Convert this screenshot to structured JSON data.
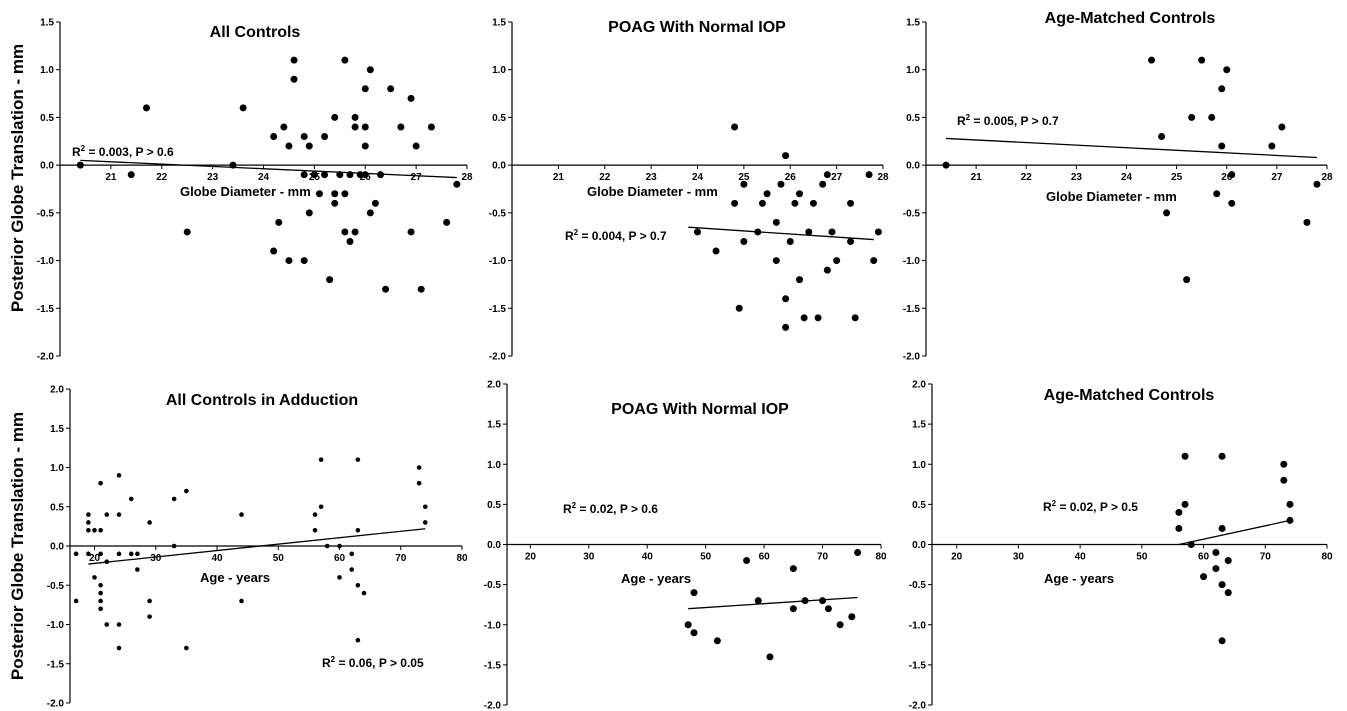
{
  "figure": {
    "ylabel_top": "Posterior Globe Translation - mm",
    "ylabel_bottom": "Posterior Globe Translation - mm"
  },
  "chart_data": [
    {
      "type": "scatter",
      "title": "All Controls",
      "xlabel": "Globe Diameter - mm",
      "ylabel": "Posterior Globe Translation - mm",
      "xlim": [
        20,
        28
      ],
      "ylim": [
        -2.0,
        1.5
      ],
      "x_ticks": [
        "21",
        "22",
        "23",
        "24",
        "25",
        "26",
        "27",
        "28"
      ],
      "y_ticks": [
        "1.5",
        "1.0",
        "0.5",
        "0.0",
        "-0.5",
        "-1.0",
        "-1.5",
        "-2.0"
      ],
      "annotation": {
        "prefix": "R",
        "sup": "2",
        "text": " = 0.003, P > 0.6"
      },
      "regression": {
        "x1": 20.4,
        "y1": 0.05,
        "x2": 27.8,
        "y2": -0.13
      },
      "marker_size": 3.5,
      "points": [
        [
          20.4,
          0.0
        ],
        [
          21.4,
          -0.1
        ],
        [
          21.7,
          0.6
        ],
        [
          22.5,
          -0.7
        ],
        [
          23.4,
          0.0
        ],
        [
          23.6,
          0.6
        ],
        [
          24.2,
          -0.9
        ],
        [
          24.2,
          0.3
        ],
        [
          24.3,
          -0.6
        ],
        [
          24.4,
          0.4
        ],
        [
          24.5,
          0.2
        ],
        [
          24.5,
          -1.0
        ],
        [
          24.6,
          1.1
        ],
        [
          24.6,
          0.9
        ],
        [
          24.8,
          -1.0
        ],
        [
          24.8,
          0.3
        ],
        [
          24.8,
          -0.1
        ],
        [
          24.9,
          -0.5
        ],
        [
          24.9,
          0.2
        ],
        [
          25.0,
          -0.1
        ],
        [
          25.1,
          -0.3
        ],
        [
          25.2,
          0.3
        ],
        [
          25.2,
          -0.1
        ],
        [
          25.3,
          -1.2
        ],
        [
          25.4,
          0.5
        ],
        [
          25.4,
          -0.3
        ],
        [
          25.4,
          -0.4
        ],
        [
          25.5,
          -0.1
        ],
        [
          25.6,
          1.1
        ],
        [
          25.6,
          -0.3
        ],
        [
          25.6,
          -0.7
        ],
        [
          25.7,
          -0.8
        ],
        [
          25.7,
          -0.1
        ],
        [
          25.8,
          0.5
        ],
        [
          25.8,
          0.4
        ],
        [
          25.8,
          -0.7
        ],
        [
          25.9,
          -0.1
        ],
        [
          26.0,
          0.8
        ],
        [
          26.0,
          0.4
        ],
        [
          26.0,
          0.2
        ],
        [
          26.0,
          -0.1
        ],
        [
          26.1,
          1.0
        ],
        [
          26.1,
          -0.5
        ],
        [
          26.2,
          -0.4
        ],
        [
          26.3,
          -0.1
        ],
        [
          26.4,
          -1.3
        ],
        [
          26.5,
          0.8
        ],
        [
          26.7,
          0.4
        ],
        [
          26.9,
          0.7
        ],
        [
          26.9,
          -0.7
        ],
        [
          27.0,
          0.2
        ],
        [
          27.1,
          -1.3
        ],
        [
          27.3,
          0.4
        ],
        [
          27.6,
          -0.6
        ],
        [
          27.8,
          -0.2
        ]
      ]
    },
    {
      "type": "scatter",
      "title": "POAG With Normal IOP",
      "xlabel": "Globe Diameter - mm",
      "ylabel": "Posterior Globe Translation - mm",
      "xlim": [
        20,
        28
      ],
      "ylim": [
        -2.0,
        1.5
      ],
      "x_ticks": [
        "21",
        "22",
        "23",
        "24",
        "25",
        "26",
        "27",
        "28"
      ],
      "y_ticks": [
        "1.5",
        "1.0",
        "0.5",
        "0.0",
        "-0.5",
        "-1.0",
        "-1.5",
        "-2.0"
      ],
      "annotation": {
        "prefix": "R",
        "sup": "2",
        "text": " = 0.004, P > 0.7"
      },
      "regression": {
        "x1": 23.8,
        "y1": -0.65,
        "x2": 27.8,
        "y2": -0.78
      },
      "marker_size": 3.5,
      "points": [
        [
          24.0,
          -0.7
        ],
        [
          24.4,
          -0.9
        ],
        [
          24.8,
          0.4
        ],
        [
          24.8,
          -0.4
        ],
        [
          24.9,
          -1.5
        ],
        [
          25.0,
          -0.8
        ],
        [
          25.0,
          -0.2
        ],
        [
          25.3,
          -0.7
        ],
        [
          25.4,
          -0.4
        ],
        [
          25.5,
          -0.3
        ],
        [
          25.7,
          -0.6
        ],
        [
          25.7,
          -1.0
        ],
        [
          25.8,
          -0.2
        ],
        [
          25.9,
          0.1
        ],
        [
          25.9,
          -1.4
        ],
        [
          25.9,
          -1.7
        ],
        [
          26.0,
          -0.8
        ],
        [
          26.1,
          -0.4
        ],
        [
          26.2,
          -0.3
        ],
        [
          26.2,
          -1.2
        ],
        [
          26.3,
          -1.6
        ],
        [
          26.4,
          -0.7
        ],
        [
          26.5,
          -0.4
        ],
        [
          26.6,
          -1.6
        ],
        [
          26.7,
          -0.2
        ],
        [
          26.8,
          -0.1
        ],
        [
          26.8,
          -1.1
        ],
        [
          26.9,
          -0.7
        ],
        [
          27.0,
          -1.0
        ],
        [
          27.3,
          -0.8
        ],
        [
          27.3,
          -0.4
        ],
        [
          27.4,
          -1.6
        ],
        [
          27.7,
          -0.1
        ],
        [
          27.8,
          -1.0
        ],
        [
          27.9,
          -0.7
        ]
      ]
    },
    {
      "type": "scatter",
      "title": "Age-Matched Controls",
      "xlabel": "Globe Diameter - mm",
      "ylabel": "Posterior Globe Translation - mm",
      "xlim": [
        20,
        28
      ],
      "ylim": [
        -2.0,
        1.5
      ],
      "x_ticks": [
        "21",
        "22",
        "23",
        "24",
        "25",
        "26",
        "27",
        "28"
      ],
      "y_ticks": [
        "1.5",
        "1.0",
        "0.5",
        "0.0",
        "-0.5",
        "-1.0",
        "-1.5",
        "-2.0"
      ],
      "annotation": {
        "prefix": "R",
        "sup": "2",
        "text": " = 0.005, P > 0.7"
      },
      "regression": {
        "x1": 20.4,
        "y1": 0.28,
        "x2": 27.8,
        "y2": 0.08
      },
      "marker_size": 3.5,
      "points": [
        [
          20.4,
          0.0
        ],
        [
          24.5,
          1.1
        ],
        [
          24.7,
          0.3
        ],
        [
          24.8,
          -0.5
        ],
        [
          25.2,
          -1.2
        ],
        [
          25.3,
          0.5
        ],
        [
          25.5,
          1.1
        ],
        [
          25.7,
          0.5
        ],
        [
          25.8,
          -0.3
        ],
        [
          25.9,
          0.8
        ],
        [
          25.9,
          0.2
        ],
        [
          26.0,
          1.0
        ],
        [
          26.1,
          -0.1
        ],
        [
          26.1,
          -0.4
        ],
        [
          26.9,
          0.2
        ],
        [
          27.1,
          0.4
        ],
        [
          27.6,
          -0.6
        ],
        [
          27.8,
          -0.2
        ]
      ]
    },
    {
      "type": "scatter",
      "title": "All Controls in Adduction",
      "xlabel": "Age - years",
      "ylabel": "Posterior Globe Translation - mm",
      "xlim": [
        16,
        80
      ],
      "ylim": [
        -2.0,
        2.0
      ],
      "x_ticks": [
        "20",
        "30",
        "40",
        "50",
        "60",
        "70",
        "80"
      ],
      "y_ticks": [
        "2.0",
        "1.5",
        "1.0",
        "0.5",
        "0.0",
        "-0.5",
        "-1.0",
        "-1.5",
        "-2.0"
      ],
      "annotation": {
        "prefix": "R",
        "sup": "2",
        "text": " = 0.06, P > 0.05"
      },
      "regression": {
        "x1": 19,
        "y1": -0.23,
        "x2": 74,
        "y2": 0.22
      },
      "marker_size": 2.3,
      "points": [
        [
          17,
          -0.1
        ],
        [
          17,
          -0.7
        ],
        [
          19,
          -0.1
        ],
        [
          19,
          0.4
        ],
        [
          19,
          0.3
        ],
        [
          19,
          0.2
        ],
        [
          20,
          0.2
        ],
        [
          20,
          -0.4
        ],
        [
          21,
          0.8
        ],
        [
          21,
          -0.5
        ],
        [
          21,
          -0.6
        ],
        [
          21,
          -0.7
        ],
        [
          21,
          -0.8
        ],
        [
          21,
          -0.1
        ],
        [
          21,
          0.2
        ],
        [
          22,
          0.4
        ],
        [
          22,
          -0.2
        ],
        [
          22,
          -1.0
        ],
        [
          24,
          -1.0
        ],
        [
          24,
          -1.3
        ],
        [
          24,
          0.9
        ],
        [
          24,
          0.4
        ],
        [
          24,
          -0.1
        ],
        [
          26,
          -0.1
        ],
        [
          26,
          0.6
        ],
        [
          27,
          -0.1
        ],
        [
          27,
          -0.3
        ],
        [
          29,
          0.3
        ],
        [
          29,
          -0.7
        ],
        [
          29,
          -0.9
        ],
        [
          33,
          0.6
        ],
        [
          33,
          0.0
        ],
        [
          35,
          0.7
        ],
        [
          35,
          -1.3
        ],
        [
          44,
          0.4
        ],
        [
          44,
          -0.7
        ],
        [
          56,
          0.2
        ],
        [
          56,
          0.4
        ],
        [
          57,
          1.1
        ],
        [
          57,
          0.5
        ],
        [
          58,
          0.0
        ],
        [
          60,
          -0.4
        ],
        [
          60,
          0.0
        ],
        [
          62,
          -0.1
        ],
        [
          62,
          -0.3
        ],
        [
          63,
          1.1
        ],
        [
          63,
          0.2
        ],
        [
          63,
          -0.5
        ],
        [
          63,
          -1.2
        ],
        [
          64,
          -0.6
        ],
        [
          73,
          1.0
        ],
        [
          73,
          0.8
        ],
        [
          74,
          0.5
        ],
        [
          74,
          0.3
        ]
      ]
    },
    {
      "type": "scatter",
      "title": "POAG With Normal IOP",
      "xlabel": "Age - years",
      "ylabel": "Posterior Globe Translation - mm",
      "xlim": [
        16,
        80
      ],
      "ylim": [
        -2.0,
        2.0
      ],
      "x_ticks": [
        "20",
        "30",
        "40",
        "50",
        "60",
        "70",
        "80"
      ],
      "y_ticks": [
        "2.0",
        "1.5",
        "1.0",
        "0.5",
        "0.0",
        "-0.5",
        "-1.0",
        "-1.5",
        "-2.0"
      ],
      "annotation": {
        "prefix": "R",
        "sup": "2",
        "text": " = 0.02, P > 0.6"
      },
      "regression": {
        "x1": 47,
        "y1": -0.8,
        "x2": 76,
        "y2": -0.66
      },
      "marker_size": 3.5,
      "points": [
        [
          47,
          -1.0
        ],
        [
          48,
          -1.1
        ],
        [
          48,
          -0.6
        ],
        [
          52,
          -1.2
        ],
        [
          57,
          -0.2
        ],
        [
          59,
          -0.7
        ],
        [
          61,
          -1.4
        ],
        [
          65,
          -0.8
        ],
        [
          65,
          -0.3
        ],
        [
          67,
          -0.7
        ],
        [
          70,
          -0.7
        ],
        [
          71,
          -0.8
        ],
        [
          73,
          -1.0
        ],
        [
          75,
          -0.9
        ],
        [
          76,
          -0.1
        ]
      ]
    },
    {
      "type": "scatter",
      "title": "Age-Matched Controls",
      "xlabel": "Age - years",
      "ylabel": "Posterior Globe Translation - mm",
      "xlim": [
        16,
        80
      ],
      "ylim": [
        -2.0,
        2.0
      ],
      "x_ticks": [
        "20",
        "30",
        "40",
        "50",
        "60",
        "70",
        "80"
      ],
      "y_ticks": [
        "2.0",
        "1.5",
        "1.0",
        "0.5",
        "0.0",
        "-0.5",
        "-1.0",
        "-1.5",
        "-2.0"
      ],
      "annotation": {
        "prefix": "R",
        "sup": "2",
        "text": " = 0.02, P > 0.5"
      },
      "regression": {
        "x1": 56,
        "y1": 0.0,
        "x2": 74,
        "y2": 0.3
      },
      "marker_size": 3.5,
      "points": [
        [
          56,
          0.4
        ],
        [
          56,
          0.2
        ],
        [
          57,
          1.1
        ],
        [
          57,
          0.5
        ],
        [
          58,
          0.0
        ],
        [
          60,
          -0.4
        ],
        [
          62,
          -0.1
        ],
        [
          62,
          -0.3
        ],
        [
          63,
          1.1
        ],
        [
          63,
          0.2
        ],
        [
          63,
          -0.5
        ],
        [
          63,
          -1.2
        ],
        [
          64,
          -0.6
        ],
        [
          64,
          -0.2
        ],
        [
          73,
          1.0
        ],
        [
          73,
          0.8
        ],
        [
          74,
          0.5
        ],
        [
          74,
          0.3
        ]
      ]
    }
  ]
}
